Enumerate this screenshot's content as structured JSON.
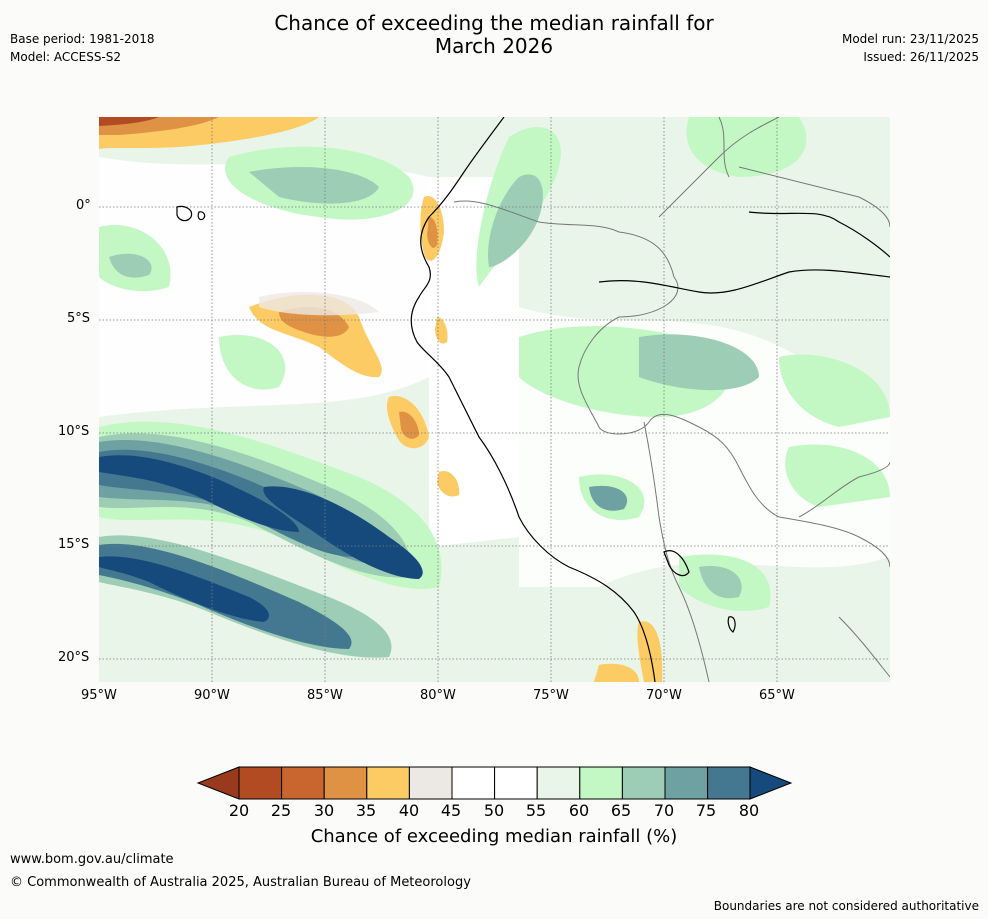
{
  "header": {
    "title_line1": "Chance of exceeding the median rainfall for",
    "title_line2": "March 2026",
    "base_period": "Base period: 1981-2018",
    "model": "Model: ACCESS-S2",
    "model_run": "Model run: 23/11/2025",
    "issued": "Issued: 26/11/2025"
  },
  "map": {
    "lat_labels": [
      "0°",
      "5°S",
      "10°S",
      "15°S",
      "20°S"
    ],
    "lon_labels": [
      "95°W",
      "90°W",
      "85°W",
      "80°W",
      "75°W",
      "70°W",
      "65°W"
    ]
  },
  "colorbar": {
    "ticks": [
      "20",
      "25",
      "30",
      "35",
      "40",
      "45",
      "50",
      "55",
      "60",
      "65",
      "70",
      "75",
      "80"
    ],
    "colors": [
      "#b24a22",
      "#c9662f",
      "#e09244",
      "#fdcb63",
      "#ece9e5",
      "#ffffff",
      "#ffffff",
      "#e9f5e8",
      "#c3f8c5",
      "#9dcdb5",
      "#6ea1a1",
      "#447891"
    ],
    "under_color": "#9a3a1c",
    "over_color": "#174a7c",
    "label": "Chance of exceeding median rainfall (%)"
  },
  "footer": {
    "website": "www.bom.gov.au/climate",
    "copyright": "© Commonwealth of Australia 2025, Australian Bureau of Meteorology",
    "disclaimer": "Boundaries are not considered authoritative"
  }
}
